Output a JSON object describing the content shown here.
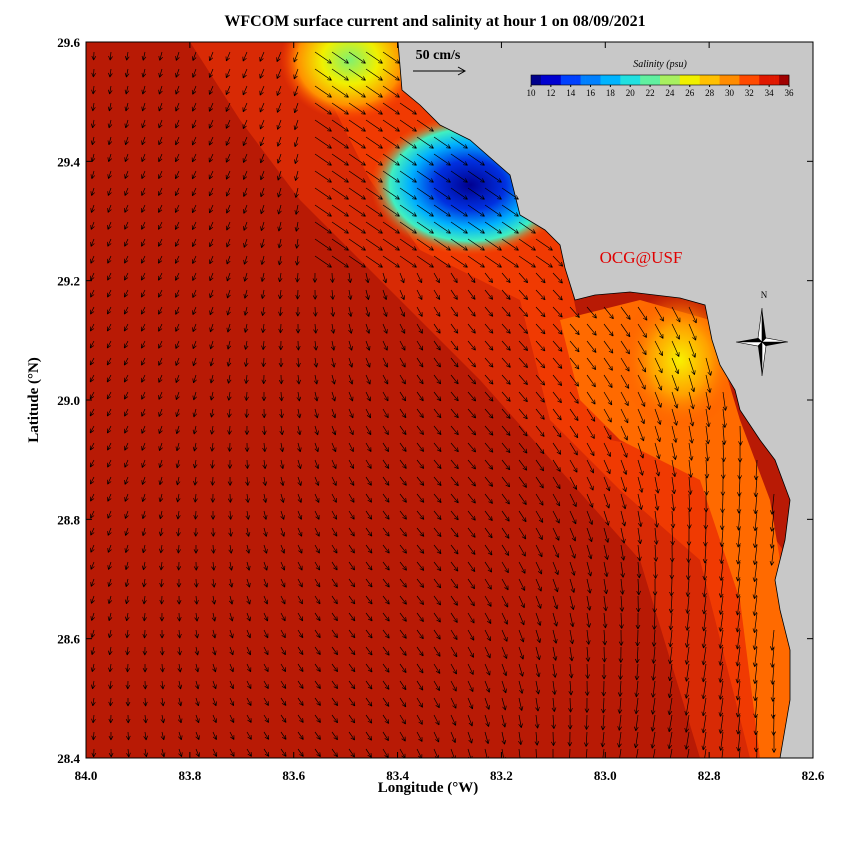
{
  "chart_data": {
    "type": "map",
    "title": "WFCOM surface current and salinity at hour 1 on 08/09/2021",
    "x_label": "Longitude (°W)",
    "y_label": "Latitude (°N)",
    "xlim": [
      84.0,
      82.6
    ],
    "ylim": [
      28.4,
      29.6
    ],
    "xticks": [
      {
        "value": 84.0,
        "label": "84.0"
      },
      {
        "value": 83.8,
        "label": "83.8"
      },
      {
        "value": 83.6,
        "label": "83.6"
      },
      {
        "value": 83.4,
        "label": "83.4"
      },
      {
        "value": 83.2,
        "label": "83.2"
      },
      {
        "value": 83.0,
        "label": "83.0"
      },
      {
        "value": 82.8,
        "label": "82.8"
      },
      {
        "value": 82.6,
        "label": "82.6"
      }
    ],
    "yticks": [
      {
        "value": 28.4,
        "label": "28.4"
      },
      {
        "value": 28.6,
        "label": "28.6"
      },
      {
        "value": 28.8,
        "label": "28.8"
      },
      {
        "value": 29.0,
        "label": "29.0"
      },
      {
        "value": 29.2,
        "label": "29.2"
      },
      {
        "value": 29.4,
        "label": "29.4"
      },
      {
        "value": 29.6,
        "label": "29.6"
      }
    ],
    "colorbar": {
      "label": "Salinity (psu)",
      "lim": [
        10,
        36
      ],
      "ticks": [
        10,
        12,
        14,
        16,
        18,
        20,
        22,
        24,
        26,
        28,
        30,
        32,
        34,
        36
      ],
      "colors": [
        "#00008b",
        "#0000d0",
        "#0040ff",
        "#0080ff",
        "#00b4ff",
        "#20e0e0",
        "#60f0a0",
        "#a8f060",
        "#f0f000",
        "#ffc000",
        "#ff8c00",
        "#ff4a00",
        "#e01800",
        "#a00000"
      ]
    },
    "scale_label": "50 cm/s",
    "credit": "OCG@USF",
    "north_label": "N"
  }
}
